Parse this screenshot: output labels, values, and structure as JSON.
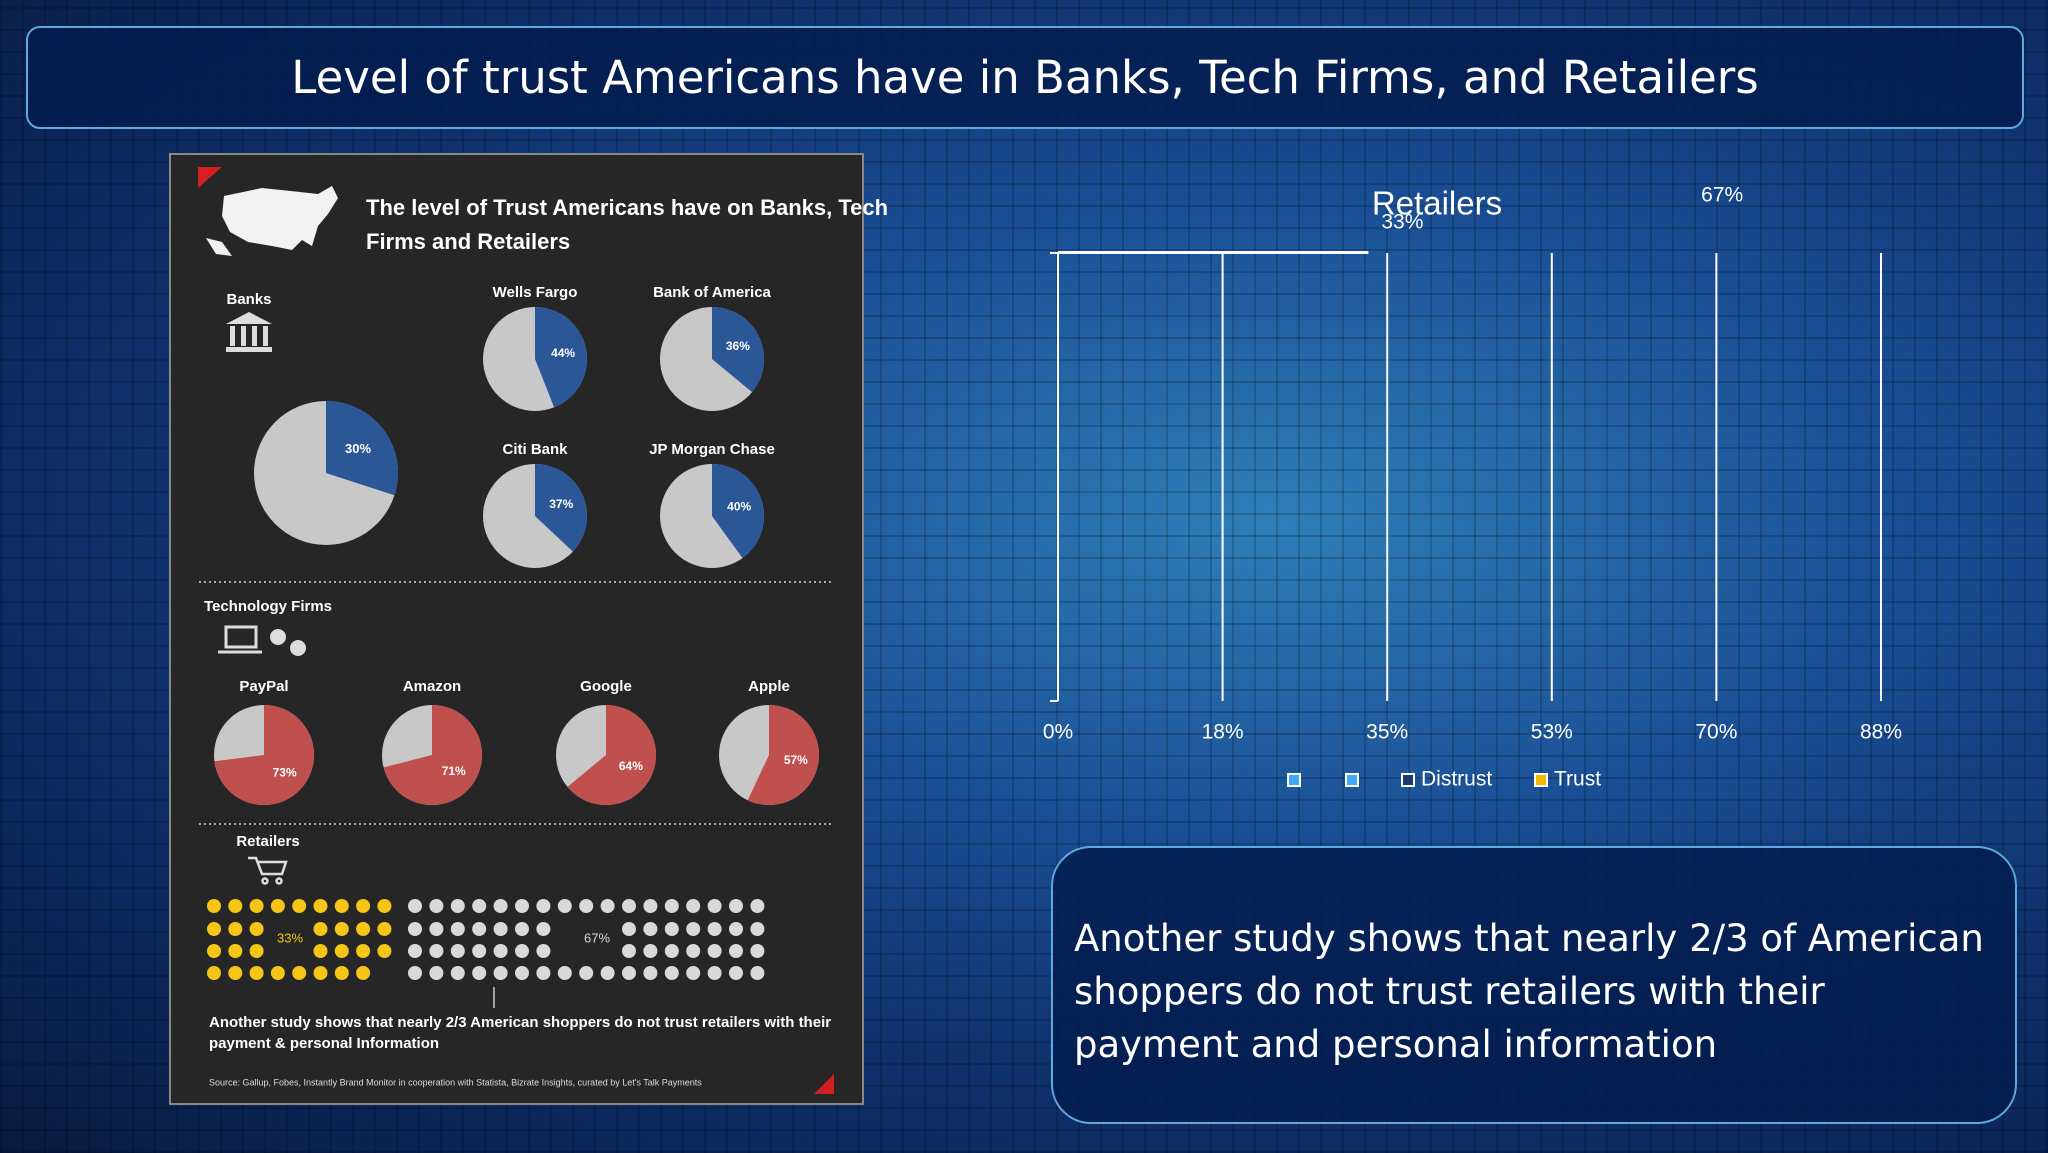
{
  "header": {
    "title": "Level of trust Americans have in Banks, Tech Firms, and Retailers"
  },
  "infographic": {
    "title_lines": [
      "The level of Trust Americans have on Banks, Tech",
      "Firms and Retailers"
    ],
    "banks": {
      "label": "Banks",
      "overall": {
        "value": 30,
        "label": "30%"
      },
      "items": [
        {
          "name": "Wells Fargo",
          "value": 44,
          "label": "44%"
        },
        {
          "name": "Bank of America",
          "value": 36,
          "label": "36%"
        },
        {
          "name": "Citi Bank",
          "value": 37,
          "label": "37%"
        },
        {
          "name": "JP Morgan Chase",
          "value": 40,
          "label": "40%"
        }
      ]
    },
    "tech": {
      "label": "Technology Firms",
      "items": [
        {
          "name": "PayPal",
          "value": 73,
          "label": "73%"
        },
        {
          "name": "Amazon",
          "value": 71,
          "label": "71%"
        },
        {
          "name": "Google",
          "value": 64,
          "label": "64%"
        },
        {
          "name": "Apple",
          "value": 57,
          "label": "57%"
        }
      ]
    },
    "retailers": {
      "label": "Retailers",
      "trust": {
        "value": 33,
        "label": "33%"
      },
      "distrust": {
        "value": 67,
        "label": "67%"
      },
      "note": "Another study shows that nearly 2/3 American shoppers do not trust retailers with their payment & personal Information"
    },
    "source": "Source: Gallup, Fobes, Instantly Brand Monitor in cooperation with Statista, Bizrate Insights, curated by Let's Talk Payments"
  },
  "chart_data": {
    "type": "bar",
    "orientation": "horizontal",
    "title": "Retailers",
    "categories": [
      null
    ],
    "series": [
      {
        "name": "Distrust",
        "color": "#ffffff",
        "values": [
          67
        ],
        "value_labels": [
          "67%"
        ]
      },
      {
        "name": "Trust",
        "color": "#f5b800",
        "values": [
          33
        ],
        "value_labels": [
          "33%"
        ]
      }
    ],
    "xlim": [
      0,
      87.5
    ],
    "xticks": [
      {
        "value": 0,
        "label": "0%"
      },
      {
        "value": 17.5,
        "label": "18%"
      },
      {
        "value": 35,
        "label": "35%"
      },
      {
        "value": 52.5,
        "label": "53%"
      },
      {
        "value": 70,
        "label": "70%"
      },
      {
        "value": 87.5,
        "label": "88%"
      }
    ],
    "grid": true
  },
  "note": "Another study shows that nearly 2/3 of American shoppers do not trust retailers with their payment and personal information"
}
